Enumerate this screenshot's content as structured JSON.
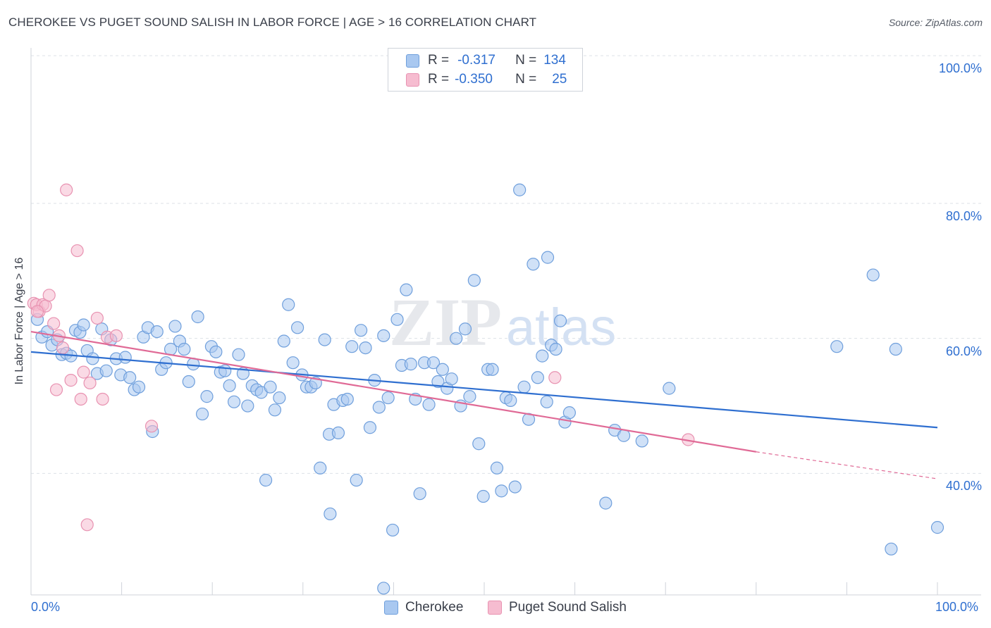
{
  "header": {
    "title": "CHEROKEE VS PUGET SOUND SALISH IN LABOR FORCE | AGE > 16 CORRELATION CHART",
    "source": "Source: ZipAtlas.com"
  },
  "legend": {
    "rows": [
      {
        "r_label": "R =",
        "r_value": "-0.317",
        "n_label": "N =",
        "n_value": "134"
      },
      {
        "r_label": "R =",
        "r_value": "-0.350",
        "n_label": "N =",
        "n_value": "25"
      }
    ]
  },
  "watermark": {
    "zip": "ZIP",
    "atlas": "atlas"
  },
  "colors": {
    "cherokee_fill": "#a9c8f0",
    "cherokee_stroke": "#6f9fdc",
    "cherokee_line": "#2f6fd0",
    "salish_fill": "#f6bcd0",
    "salish_stroke": "#e892b1",
    "salish_line": "#e06a96",
    "axis_text": "#2f6fd0",
    "grid": "#dde1e7"
  },
  "chart_data": {
    "type": "scatter",
    "title": "CHEROKEE VS PUGET SOUND SALISH IN LABOR FORCE | AGE > 16 CORRELATION CHART",
    "xlabel": "",
    "ylabel": "In Labor Force | Age > 16",
    "xlim": [
      0,
      100
    ],
    "ylim": [
      22,
      102
    ],
    "x_tick_labels": [
      "0.0%",
      "100.0%"
    ],
    "y_tick_labels": [
      "40.0%",
      "60.0%",
      "80.0%",
      "100.0%"
    ],
    "y_ticks": [
      40,
      60,
      80,
      100
    ],
    "grid": true,
    "legend_position": "bottom",
    "series": [
      {
        "name": "Cherokee",
        "r": -0.317,
        "n": 134,
        "trend": {
          "x0": 0,
          "y0": 58.0,
          "x1": 100,
          "y1": 46.8
        },
        "points": [
          [
            0.7,
            62.8
          ],
          [
            1.2,
            60.2
          ],
          [
            1.8,
            61.0
          ],
          [
            2.3,
            59.0
          ],
          [
            2.9,
            59.8
          ],
          [
            3.4,
            57.6
          ],
          [
            3.9,
            57.8
          ],
          [
            4.4,
            57.4
          ],
          [
            4.9,
            61.2
          ],
          [
            5.4,
            60.9
          ],
          [
            5.8,
            62.0
          ],
          [
            6.2,
            58.2
          ],
          [
            6.8,
            57.0
          ],
          [
            7.3,
            54.8
          ],
          [
            7.8,
            61.4
          ],
          [
            8.3,
            55.2
          ],
          [
            8.8,
            59.8
          ],
          [
            9.4,
            57.0
          ],
          [
            9.9,
            54.6
          ],
          [
            10.4,
            57.2
          ],
          [
            10.9,
            54.2
          ],
          [
            11.4,
            52.4
          ],
          [
            11.9,
            52.8
          ],
          [
            12.4,
            60.2
          ],
          [
            12.9,
            61.6
          ],
          [
            13.4,
            46.2
          ],
          [
            13.9,
            61.0
          ],
          [
            14.4,
            55.4
          ],
          [
            14.9,
            56.4
          ],
          [
            15.4,
            58.4
          ],
          [
            15.9,
            61.8
          ],
          [
            16.4,
            59.6
          ],
          [
            16.9,
            58.4
          ],
          [
            17.4,
            53.6
          ],
          [
            17.9,
            56.2
          ],
          [
            18.4,
            63.2
          ],
          [
            18.9,
            48.8
          ],
          [
            19.4,
            51.4
          ],
          [
            19.9,
            58.8
          ],
          [
            20.4,
            58.0
          ],
          [
            20.9,
            55.0
          ],
          [
            21.4,
            55.2
          ],
          [
            21.9,
            53.0
          ],
          [
            22.4,
            50.6
          ],
          [
            22.9,
            57.6
          ],
          [
            23.4,
            54.8
          ],
          [
            23.9,
            50.0
          ],
          [
            24.4,
            53.0
          ],
          [
            24.9,
            52.4
          ],
          [
            25.4,
            52.0
          ],
          [
            25.9,
            39.0
          ],
          [
            26.4,
            52.8
          ],
          [
            26.9,
            49.4
          ],
          [
            27.4,
            51.2
          ],
          [
            27.9,
            59.6
          ],
          [
            28.4,
            65.0
          ],
          [
            28.9,
            56.4
          ],
          [
            29.4,
            61.6
          ],
          [
            29.9,
            54.6
          ],
          [
            30.4,
            52.8
          ],
          [
            30.9,
            52.8
          ],
          [
            31.4,
            53.4
          ],
          [
            31.9,
            40.8
          ],
          [
            32.4,
            59.8
          ],
          [
            32.9,
            45.8
          ],
          [
            33.4,
            50.2
          ],
          [
            33.9,
            46.0
          ],
          [
            34.4,
            50.8
          ],
          [
            34.9,
            51.0
          ],
          [
            35.4,
            58.8
          ],
          [
            35.9,
            39.0
          ],
          [
            36.4,
            61.2
          ],
          [
            36.9,
            58.6
          ],
          [
            37.4,
            46.8
          ],
          [
            37.9,
            53.8
          ],
          [
            38.4,
            49.8
          ],
          [
            38.9,
            60.4
          ],
          [
            39.4,
            51.2
          ],
          [
            39.9,
            31.6
          ],
          [
            40.4,
            62.8
          ],
          [
            40.9,
            56.0
          ],
          [
            41.4,
            67.2
          ],
          [
            41.9,
            56.2
          ],
          [
            42.4,
            51.0
          ],
          [
            42.9,
            37.0
          ],
          [
            43.4,
            56.4
          ],
          [
            43.9,
            50.2
          ],
          [
            44.4,
            56.4
          ],
          [
            44.9,
            53.6
          ],
          [
            45.4,
            55.4
          ],
          [
            45.9,
            52.6
          ],
          [
            46.4,
            54.0
          ],
          [
            46.9,
            60.0
          ],
          [
            47.4,
            50.0
          ],
          [
            47.9,
            61.4
          ],
          [
            48.4,
            51.4
          ],
          [
            48.9,
            68.6
          ],
          [
            49.4,
            44.4
          ],
          [
            49.9,
            36.6
          ],
          [
            50.4,
            55.4
          ],
          [
            50.9,
            55.4
          ],
          [
            51.4,
            40.8
          ],
          [
            51.9,
            37.4
          ],
          [
            52.4,
            51.2
          ],
          [
            52.9,
            50.8
          ],
          [
            53.4,
            38.0
          ],
          [
            53.9,
            82.0
          ],
          [
            54.4,
            52.8
          ],
          [
            54.9,
            48.0
          ],
          [
            55.4,
            71.0
          ],
          [
            55.9,
            54.2
          ],
          [
            56.4,
            57.4
          ],
          [
            56.9,
            50.6
          ],
          [
            57.4,
            59.0
          ],
          [
            57.9,
            58.4
          ],
          [
            58.4,
            62.6
          ],
          [
            58.9,
            47.6
          ],
          [
            59.4,
            49.0
          ],
          [
            63.4,
            35.6
          ],
          [
            64.4,
            46.4
          ],
          [
            65.4,
            45.6
          ],
          [
            67.4,
            44.8
          ],
          [
            70.4,
            52.6
          ],
          [
            88.9,
            58.8
          ],
          [
            92.9,
            69.4
          ],
          [
            94.9,
            28.8
          ],
          [
            95.4,
            58.4
          ],
          [
            100.0,
            32.0
          ],
          [
            38.9,
            23.0
          ],
          [
            33.0,
            34.0
          ],
          [
            57.0,
            72.0
          ]
        ]
      },
      {
        "name": "Puget Sound Salish",
        "r": -0.35,
        "n": 25,
        "trend": {
          "x0": 0,
          "y0": 61.0,
          "x1": 80,
          "y1": 43.2,
          "dash_to_x": 100,
          "dash_to_y": 39.2
        },
        "points": [
          [
            0.3,
            65.2
          ],
          [
            0.6,
            65.0
          ],
          [
            0.9,
            64.0
          ],
          [
            1.3,
            65.0
          ],
          [
            1.6,
            64.8
          ],
          [
            2.0,
            66.4
          ],
          [
            2.5,
            62.2
          ],
          [
            2.8,
            52.4
          ],
          [
            3.1,
            60.4
          ],
          [
            3.5,
            58.6
          ],
          [
            3.9,
            82.0
          ],
          [
            4.4,
            53.8
          ],
          [
            5.1,
            73.0
          ],
          [
            5.5,
            51.0
          ],
          [
            5.8,
            55.0
          ],
          [
            6.2,
            32.4
          ],
          [
            6.5,
            53.4
          ],
          [
            7.3,
            63.0
          ],
          [
            7.9,
            51.0
          ],
          [
            8.4,
            60.2
          ],
          [
            9.4,
            60.4
          ],
          [
            13.3,
            47.0
          ],
          [
            57.8,
            54.2
          ],
          [
            72.5,
            45.0
          ],
          [
            0.7,
            64.0
          ]
        ]
      }
    ]
  }
}
